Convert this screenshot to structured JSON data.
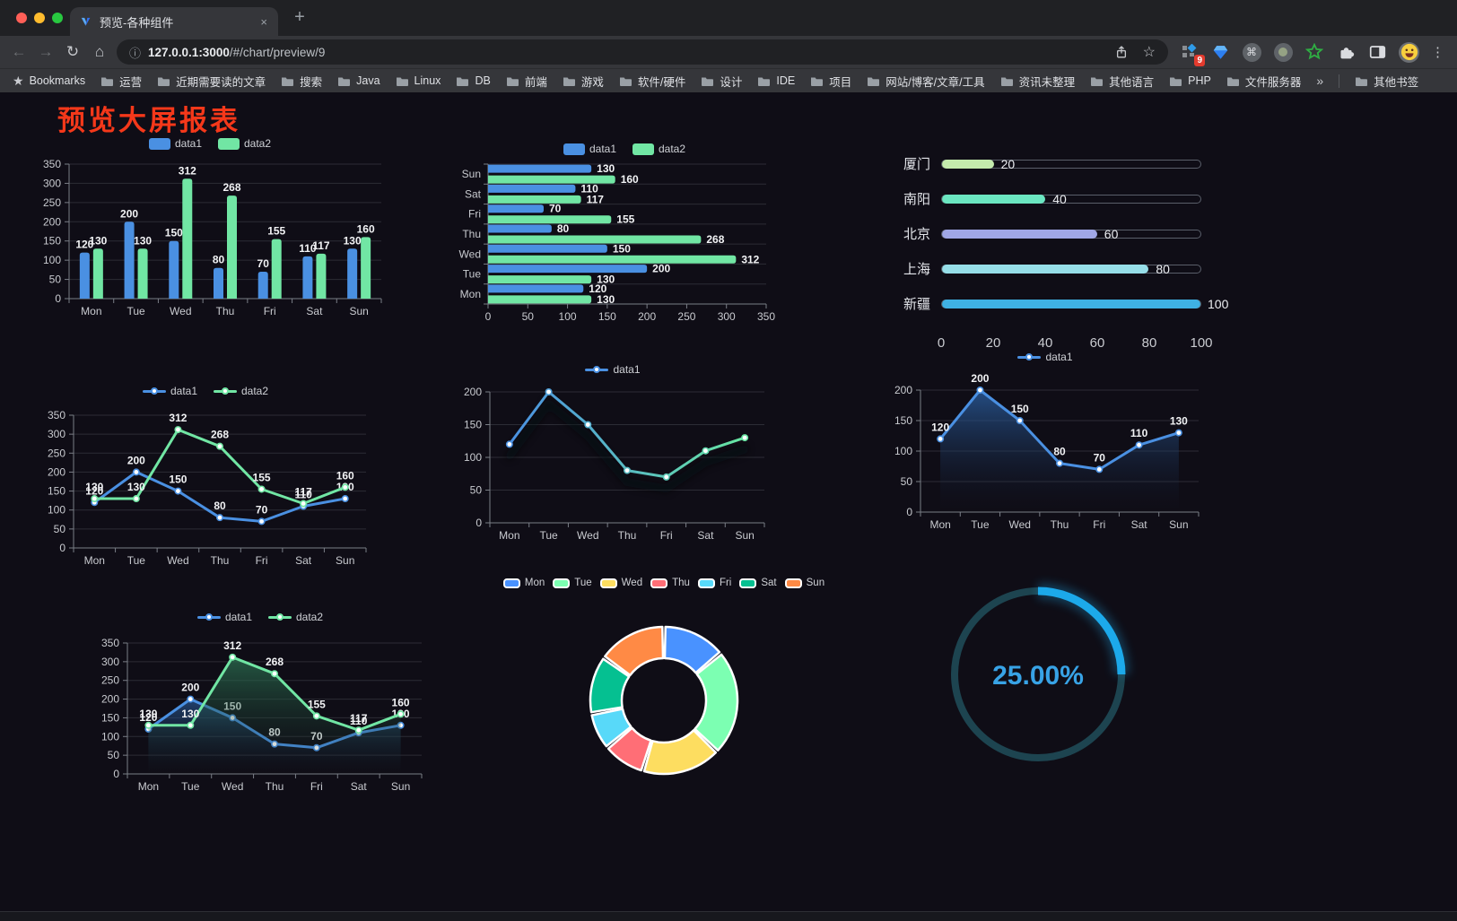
{
  "browser": {
    "tab": {
      "title": "预览-各种组件",
      "close_icon": "×",
      "new_tab_icon": "+"
    },
    "nav": {
      "back_icon": "←",
      "forward_icon": "→",
      "reload_icon": "↻",
      "home_icon": "⌂"
    },
    "address": {
      "info_icon": "ⓘ",
      "url_host": "127.0.0.1:3000",
      "url_path": "/#/chart/preview/9",
      "star_icon": "☆"
    },
    "extensions": {
      "badge_count": "9",
      "command_icon": "⌘",
      "menu_icon": "⋮"
    },
    "bookmarks_bar": {
      "star_icon": "★",
      "label": "Bookmarks",
      "folders": [
        "运营",
        "近期需要读的文章",
        "搜索",
        "Java",
        "Linux",
        "DB",
        "前端",
        "游戏",
        "软件/硬件",
        "设计",
        "IDE",
        "项目",
        "网站/博客/文章/工具",
        "资讯未整理",
        "其他语言",
        "PHP",
        "文件服务器"
      ],
      "overflow_icon": "»",
      "other_label": "其他书签"
    }
  },
  "page": {
    "title": "预览大屏报表",
    "title_color": "#f5381a",
    "background": "#0f0d16"
  },
  "chart_data": [
    {
      "id": "bar-grouped",
      "type": "bar",
      "title": "",
      "categories": [
        "Mon",
        "Tue",
        "Wed",
        "Thu",
        "Fri",
        "Sat",
        "Sun"
      ],
      "series": [
        {
          "name": "data1",
          "color": "#4a90e2",
          "values": [
            120,
            200,
            150,
            80,
            70,
            110,
            130
          ]
        },
        {
          "name": "data2",
          "color": "#71e6a4",
          "values": [
            130,
            130,
            312,
            268,
            155,
            117,
            160
          ]
        }
      ],
      "ylim": [
        0,
        350
      ],
      "ystep": 50,
      "grid": true,
      "legend": "rect",
      "legend_position": "top",
      "value_labels": true
    },
    {
      "id": "bar-horizontal",
      "type": "hbar",
      "title": "",
      "categories": [
        "Mon",
        "Tue",
        "Wed",
        "Thu",
        "Fri",
        "Sat",
        "Sun"
      ],
      "series": [
        {
          "name": "data1",
          "color": "#4a90e2",
          "values": [
            120,
            200,
            150,
            80,
            70,
            110,
            130
          ]
        },
        {
          "name": "data2",
          "color": "#71e6a4",
          "values": [
            130,
            130,
            312,
            268,
            155,
            117,
            160
          ]
        }
      ],
      "xlim": [
        0,
        350
      ],
      "xstep": 50,
      "grid": true,
      "legend": "rect",
      "legend_position": "top",
      "value_labels": true
    },
    {
      "id": "progress-list",
      "type": "progress",
      "title": "",
      "rows": [
        {
          "label": "厦门",
          "value": 20,
          "color": "#c4ebad"
        },
        {
          "label": "南阳",
          "value": 40,
          "color": "#6be6c1"
        },
        {
          "label": "北京",
          "value": 60,
          "color": "#a0a7e6"
        },
        {
          "label": "上海",
          "value": 80,
          "color": "#96dee8"
        },
        {
          "label": "新疆",
          "value": 100,
          "color": "#3fb1e3"
        }
      ],
      "xlim": [
        0,
        100
      ],
      "xticks": [
        0,
        20,
        40,
        60,
        80,
        100
      ]
    },
    {
      "id": "line-two",
      "type": "line",
      "title": "",
      "categories": [
        "Mon",
        "Tue",
        "Wed",
        "Thu",
        "Fri",
        "Sat",
        "Sun"
      ],
      "series": [
        {
          "name": "data1",
          "color": "#4a90e2",
          "values": [
            120,
            200,
            150,
            80,
            70,
            110,
            130
          ]
        },
        {
          "name": "data2",
          "color": "#71e6a4",
          "values": [
            130,
            130,
            312,
            268,
            155,
            117,
            160
          ]
        }
      ],
      "ylim": [
        0,
        350
      ],
      "ystep": 50,
      "grid": true,
      "legend": "line",
      "legend_position": "top",
      "value_labels": true
    },
    {
      "id": "line-gradient",
      "type": "line",
      "title": "",
      "categories": [
        "Mon",
        "Tue",
        "Wed",
        "Thu",
        "Fri",
        "Sat",
        "Sun"
      ],
      "series": [
        {
          "name": "data1",
          "color": "#4a90e2",
          "gradient": [
            "#4a90e2",
            "#67e6a2"
          ],
          "values": [
            120,
            200,
            150,
            80,
            70,
            110,
            130
          ]
        }
      ],
      "ylim": [
        0,
        200
      ],
      "ystep": 50,
      "grid": true,
      "legend": "line",
      "legend_position": "top",
      "value_labels": false,
      "shadow": true
    },
    {
      "id": "area-single",
      "type": "line",
      "title": "",
      "categories": [
        "Mon",
        "Tue",
        "Wed",
        "Thu",
        "Fri",
        "Sat",
        "Sun"
      ],
      "series": [
        {
          "name": "data1",
          "color": "#4a90e2",
          "values": [
            120,
            200,
            150,
            80,
            70,
            110,
            130
          ],
          "area": [
            "rgba(44,100,170,0.75)",
            "rgba(20,30,50,0)"
          ]
        }
      ],
      "ylim": [
        0,
        200
      ],
      "ystep": 50,
      "grid": true,
      "legend": "line",
      "legend_position": "top",
      "value_labels": true
    },
    {
      "id": "area-two",
      "type": "line",
      "title": "",
      "categories": [
        "Mon",
        "Tue",
        "Wed",
        "Thu",
        "Fri",
        "Sat",
        "Sun"
      ],
      "series": [
        {
          "name": "data1",
          "color": "#4a90e2",
          "values": [
            120,
            200,
            150,
            80,
            70,
            110,
            130
          ],
          "area": [
            "rgba(44,100,170,0.6)",
            "rgba(20,30,50,0)"
          ]
        },
        {
          "name": "data2",
          "color": "#71e6a4",
          "values": [
            130,
            130,
            312,
            268,
            155,
            117,
            160
          ],
          "area": [
            "rgba(46,120,86,0.7)",
            "rgba(20,40,35,0)"
          ]
        }
      ],
      "ylim": [
        0,
        350
      ],
      "ystep": 50,
      "grid": true,
      "legend": "line",
      "legend_position": "top",
      "value_labels": true
    },
    {
      "id": "donut",
      "type": "pie",
      "title": "",
      "categories": [
        "Mon",
        "Tue",
        "Wed",
        "Thu",
        "Fri",
        "Sat",
        "Sun"
      ],
      "values": [
        120,
        200,
        150,
        80,
        70,
        110,
        130
      ],
      "colors": [
        "#4992ff",
        "#7cffb2",
        "#fddd60",
        "#ff6e76",
        "#58d9f9",
        "#05c091",
        "#ff8a45"
      ],
      "legend": "pie",
      "legend_position": "top",
      "inner_radius": 47,
      "outer_radius": 82
    },
    {
      "id": "gauge",
      "type": "gauge",
      "title": "",
      "value": 25,
      "label": "25.00%",
      "color": "#1ca9ea",
      "track_color": "#1d4450",
      "text_color": "#38a3e6"
    }
  ]
}
